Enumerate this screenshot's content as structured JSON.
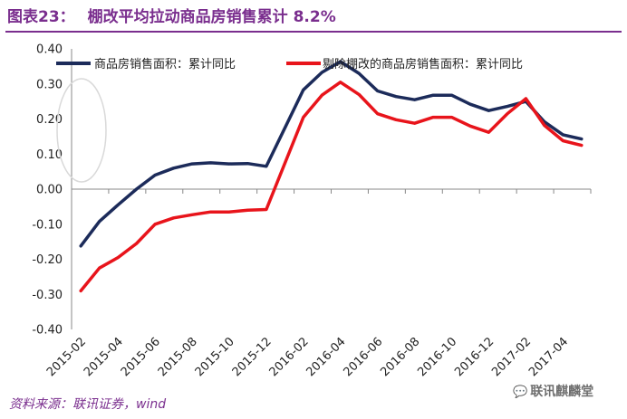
{
  "header": {
    "figure_number": "图表23：",
    "title": "棚改平均拉动商品房销售累计 8.2%"
  },
  "footer": {
    "source": "资料来源：联讯证券，wind",
    "watermark": "联讯麒麟堂",
    "watermark_icon": "wechat-icon"
  },
  "colors": {
    "series1": "#1c2b5a",
    "series2": "#e8141b",
    "title": "#7a2e8e",
    "axis": "#888888"
  },
  "chart_data": {
    "type": "line",
    "title": "棚改平均拉动商品房销售累计 8.2%",
    "xlabel": "",
    "ylabel": "",
    "ylim": [
      -0.4,
      0.4
    ],
    "yticks": [
      "0.40",
      "0.30",
      "0.20",
      "0.10",
      "0.00",
      "-0.10",
      "-0.20",
      "-0.30",
      "-0.40"
    ],
    "ytick_values": [
      0.4,
      0.3,
      0.2,
      0.1,
      0.0,
      -0.1,
      -0.2,
      -0.3,
      -0.4
    ],
    "x": [
      "2015-02",
      "2015-03",
      "2015-04",
      "2015-05",
      "2015-06",
      "2015-07",
      "2015-08",
      "2015-09",
      "2015-10",
      "2015-11",
      "2015-12",
      "2016-01",
      "2016-02",
      "2016-03",
      "2016-04",
      "2016-05",
      "2016-06",
      "2016-07",
      "2016-08",
      "2016-09",
      "2016-10",
      "2016-11",
      "2016-12",
      "2017-01",
      "2017-02",
      "2017-03",
      "2017-04",
      "2017-05"
    ],
    "xtick_labels": [
      "2015-02",
      "2015-04",
      "2015-06",
      "2015-08",
      "2015-10",
      "2015-12",
      "2016-02",
      "2016-04",
      "2016-06",
      "2016-08",
      "2016-10",
      "2016-12",
      "2017-02",
      "2017-04"
    ],
    "legend_position": "top",
    "series": [
      {
        "name": "商品房销售面积：累计同比",
        "color": "#1c2b5a",
        "values": [
          -0.162,
          -0.092,
          -0.045,
          0.0,
          0.04,
          0.06,
          0.072,
          0.075,
          0.072,
          0.073,
          0.065,
          null,
          0.283,
          0.333,
          0.364,
          0.33,
          0.28,
          0.264,
          0.255,
          0.268,
          0.268,
          0.242,
          0.224,
          0.236,
          0.25,
          0.192,
          0.155,
          0.143
        ]
      },
      {
        "name": "剔除棚改的商品房销售面积：累计同比",
        "color": "#e8141b",
        "values": [
          -0.29,
          -0.225,
          -0.195,
          -0.155,
          -0.1,
          -0.082,
          -0.073,
          -0.065,
          -0.065,
          -0.06,
          -0.058,
          null,
          0.205,
          0.268,
          0.305,
          0.27,
          0.215,
          0.198,
          0.188,
          0.205,
          0.205,
          0.18,
          0.162,
          0.215,
          0.258,
          0.182,
          0.138,
          0.125
        ]
      }
    ],
    "annotation": "ellipse-highlight-around-y-axis-0.10-0.30"
  }
}
